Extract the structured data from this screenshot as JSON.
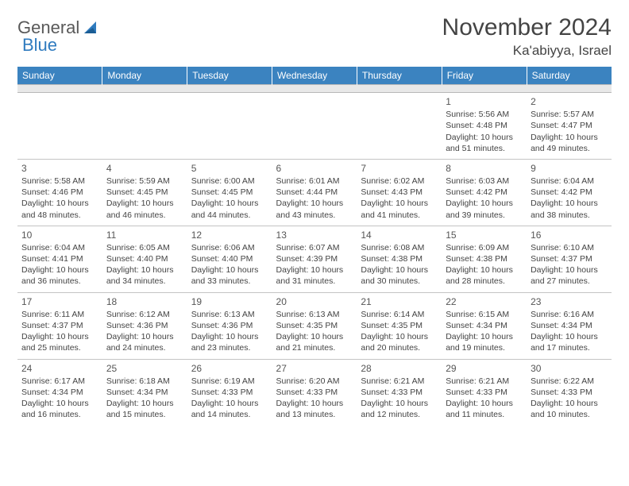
{
  "logo": {
    "text1": "General",
    "text2": "Blue"
  },
  "title": "November 2024",
  "location": "Ka'abiyya, Israel",
  "header_bg": "#3b83c0",
  "day_names": [
    "Sunday",
    "Monday",
    "Tuesday",
    "Wednesday",
    "Thursday",
    "Friday",
    "Saturday"
  ],
  "weeks": [
    [
      null,
      null,
      null,
      null,
      null,
      {
        "n": "1",
        "sr": "5:56 AM",
        "ss": "4:48 PM",
        "dl": "10 hours and 51 minutes."
      },
      {
        "n": "2",
        "sr": "5:57 AM",
        "ss": "4:47 PM",
        "dl": "10 hours and 49 minutes."
      }
    ],
    [
      {
        "n": "3",
        "sr": "5:58 AM",
        "ss": "4:46 PM",
        "dl": "10 hours and 48 minutes."
      },
      {
        "n": "4",
        "sr": "5:59 AM",
        "ss": "4:45 PM",
        "dl": "10 hours and 46 minutes."
      },
      {
        "n": "5",
        "sr": "6:00 AM",
        "ss": "4:45 PM",
        "dl": "10 hours and 44 minutes."
      },
      {
        "n": "6",
        "sr": "6:01 AM",
        "ss": "4:44 PM",
        "dl": "10 hours and 43 minutes."
      },
      {
        "n": "7",
        "sr": "6:02 AM",
        "ss": "4:43 PM",
        "dl": "10 hours and 41 minutes."
      },
      {
        "n": "8",
        "sr": "6:03 AM",
        "ss": "4:42 PM",
        "dl": "10 hours and 39 minutes."
      },
      {
        "n": "9",
        "sr": "6:04 AM",
        "ss": "4:42 PM",
        "dl": "10 hours and 38 minutes."
      }
    ],
    [
      {
        "n": "10",
        "sr": "6:04 AM",
        "ss": "4:41 PM",
        "dl": "10 hours and 36 minutes."
      },
      {
        "n": "11",
        "sr": "6:05 AM",
        "ss": "4:40 PM",
        "dl": "10 hours and 34 minutes."
      },
      {
        "n": "12",
        "sr": "6:06 AM",
        "ss": "4:40 PM",
        "dl": "10 hours and 33 minutes."
      },
      {
        "n": "13",
        "sr": "6:07 AM",
        "ss": "4:39 PM",
        "dl": "10 hours and 31 minutes."
      },
      {
        "n": "14",
        "sr": "6:08 AM",
        "ss": "4:38 PM",
        "dl": "10 hours and 30 minutes."
      },
      {
        "n": "15",
        "sr": "6:09 AM",
        "ss": "4:38 PM",
        "dl": "10 hours and 28 minutes."
      },
      {
        "n": "16",
        "sr": "6:10 AM",
        "ss": "4:37 PM",
        "dl": "10 hours and 27 minutes."
      }
    ],
    [
      {
        "n": "17",
        "sr": "6:11 AM",
        "ss": "4:37 PM",
        "dl": "10 hours and 25 minutes."
      },
      {
        "n": "18",
        "sr": "6:12 AM",
        "ss": "4:36 PM",
        "dl": "10 hours and 24 minutes."
      },
      {
        "n": "19",
        "sr": "6:13 AM",
        "ss": "4:36 PM",
        "dl": "10 hours and 23 minutes."
      },
      {
        "n": "20",
        "sr": "6:13 AM",
        "ss": "4:35 PM",
        "dl": "10 hours and 21 minutes."
      },
      {
        "n": "21",
        "sr": "6:14 AM",
        "ss": "4:35 PM",
        "dl": "10 hours and 20 minutes."
      },
      {
        "n": "22",
        "sr": "6:15 AM",
        "ss": "4:34 PM",
        "dl": "10 hours and 19 minutes."
      },
      {
        "n": "23",
        "sr": "6:16 AM",
        "ss": "4:34 PM",
        "dl": "10 hours and 17 minutes."
      }
    ],
    [
      {
        "n": "24",
        "sr": "6:17 AM",
        "ss": "4:34 PM",
        "dl": "10 hours and 16 minutes."
      },
      {
        "n": "25",
        "sr": "6:18 AM",
        "ss": "4:34 PM",
        "dl": "10 hours and 15 minutes."
      },
      {
        "n": "26",
        "sr": "6:19 AM",
        "ss": "4:33 PM",
        "dl": "10 hours and 14 minutes."
      },
      {
        "n": "27",
        "sr": "6:20 AM",
        "ss": "4:33 PM",
        "dl": "10 hours and 13 minutes."
      },
      {
        "n": "28",
        "sr": "6:21 AM",
        "ss": "4:33 PM",
        "dl": "10 hours and 12 minutes."
      },
      {
        "n": "29",
        "sr": "6:21 AM",
        "ss": "4:33 PM",
        "dl": "10 hours and 11 minutes."
      },
      {
        "n": "30",
        "sr": "6:22 AM",
        "ss": "4:33 PM",
        "dl": "10 hours and 10 minutes."
      }
    ]
  ],
  "labels": {
    "sunrise": "Sunrise: ",
    "sunset": "Sunset: ",
    "daylight": "Daylight: "
  }
}
